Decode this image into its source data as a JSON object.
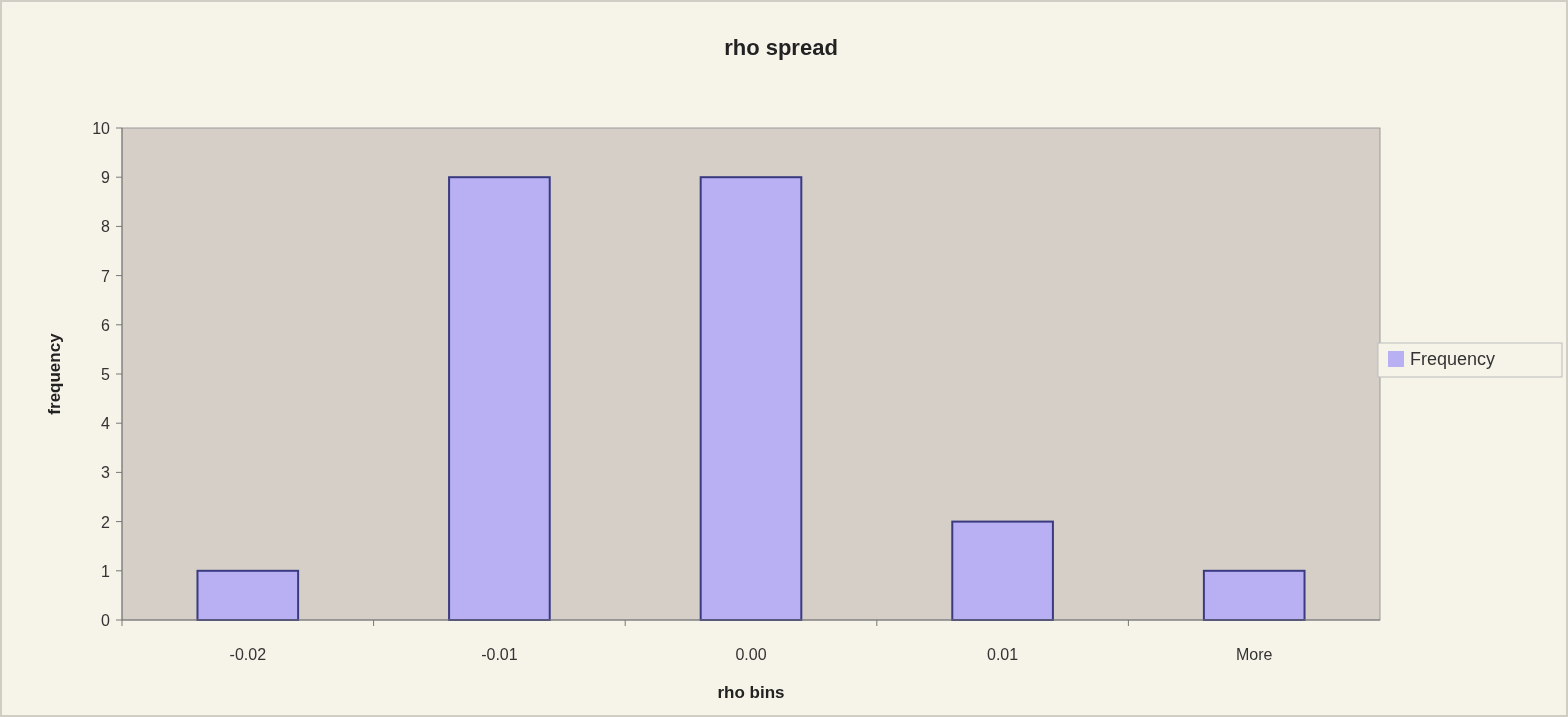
{
  "chart_data": {
    "type": "bar",
    "title": "rho spread",
    "xlabel": "rho bins",
    "ylabel": "frequency",
    "categories": [
      "-0.02",
      "-0.01",
      "0.00",
      "0.01",
      "More"
    ],
    "series": [
      {
        "name": "Frequency",
        "color": "#b8b0f2",
        "values": [
          1,
          9,
          9,
          2,
          1
        ]
      }
    ],
    "ylim": [
      0,
      10
    ],
    "yticks": [
      0,
      1,
      2,
      3,
      4,
      5,
      6,
      7,
      8,
      9,
      10
    ],
    "grid": false,
    "legend": "right"
  }
}
